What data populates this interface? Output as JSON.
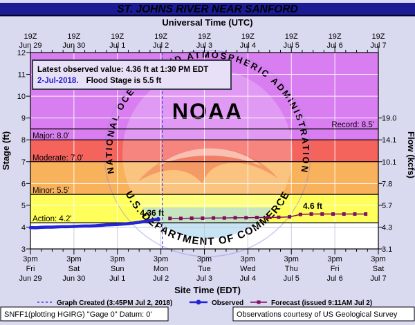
{
  "title": "ST. JOHNS RIVER NEAR SANFORD",
  "top_axis": {
    "title": "Universal Time (UTC)",
    "times": [
      "19Z",
      "19Z",
      "19Z",
      "19Z",
      "19Z",
      "19Z",
      "19Z",
      "19Z",
      "19Z"
    ],
    "dates": [
      "Jun 29",
      "Jun 30",
      "Jul 1",
      "Jul 2",
      "Jul 3",
      "Jul 4",
      "Jul 5",
      "Jul 6",
      "Jul 7"
    ]
  },
  "bottom_axis": {
    "title": "Site Time (EDT)",
    "times": [
      "3pm",
      "3pm",
      "3pm",
      "3pm",
      "3pm",
      "3pm",
      "3pm",
      "3pm",
      "3pm"
    ],
    "days": [
      "Fri",
      "Sat",
      "Sun",
      "Mon",
      "Tue",
      "Wed",
      "Thu",
      "Fri",
      "Sat"
    ],
    "dates": [
      "Jun 29",
      "Jun 30",
      "Jul 1",
      "Jul 2",
      "Jul 3",
      "Jul 4",
      "Jul 5",
      "Jul 6",
      "Jul 7"
    ]
  },
  "left_axis": {
    "label": "Stage (ft)",
    "ticks": [
      "12",
      "11",
      "10",
      "9",
      "8",
      "7",
      "6",
      "5",
      "4",
      "3"
    ]
  },
  "right_axis": {
    "label": "Flow (kcfs)",
    "ticks": [
      "19.0",
      "14.1",
      "10.1",
      "7.8",
      "5.7",
      "4.3",
      "3.1"
    ]
  },
  "info_box": {
    "line1": "Latest observed value: 4.36 ft at 1:30 PM EDT",
    "line2_blue": "2-Jul-2018.",
    "line2_black": "Flood Stage is 5.5 ft"
  },
  "flood_labels": {
    "record": "Record: 8.5'",
    "major": "Major: 8.0'",
    "moderate": "Moderate: 7.0'",
    "minor": "Minor: 5.5'",
    "action": "Action: 4.2'"
  },
  "annotations": {
    "observed_value": "4.36 ft",
    "forecast_peak": "4.6 ft"
  },
  "legend": {
    "graph_created": "Graph Created (3:45PM Jul 2, 2018)",
    "observed": "Observed",
    "forecast": "Forecast (issued 9:11AM Jul 2)"
  },
  "footer": {
    "left": "SNFF1(plotting HGIRG) \"Gage 0\" Datum: 0'",
    "right": "Observations courtesy of US Geological Survey"
  },
  "watermark": {
    "org": "NATIONAL OCEANIC AND ATMOSPHERIC ADMINISTRATION",
    "name": "NOAA",
    "dept": "U.S. DEPARTMENT OF COMMERCE"
  },
  "colors": {
    "title_bar": "#1b1b96",
    "background": "#d9d9f0",
    "zone_major": "#d97ef0",
    "zone_moderate": "#f4635c",
    "zone_minor": "#f9b25c",
    "zone_action": "#ffff5c",
    "zone_normal": "#ffffff",
    "observed": "#2424d8",
    "forecast": "#7d1060",
    "graph_created_line": "#4444e0",
    "blue_text": "#2222cc",
    "info_box_fill": "#e7e0f7"
  },
  "chart_data": {
    "type": "line",
    "title": "ST. JOHNS RIVER NEAR SANFORD",
    "xlabel_top": "Universal Time (UTC)",
    "xlabel_bottom": "Site Time (EDT)",
    "ylabel_left": "Stage (ft)",
    "ylabel_right": "Flow (kcfs)",
    "ylim_stage_ft": [
      3,
      12
    ],
    "x_range_hours": [
      0,
      192
    ],
    "x_start": "Jun 29 3pm EDT (19Z)",
    "x_major_tick_hours": 24,
    "x_minor_tick_hours": 6,
    "flow_ticks_kcfs_at_stage": [
      {
        "stage": 9,
        "flow": 19.0
      },
      {
        "stage": 8,
        "flow": 14.1
      },
      {
        "stage": 7,
        "flow": 10.1
      },
      {
        "stage": 6,
        "flow": 7.8
      },
      {
        "stage": 5,
        "flow": 5.7
      },
      {
        "stage": 4,
        "flow": 4.3
      },
      {
        "stage": 3,
        "flow": 3.1
      }
    ],
    "flood_stages": {
      "action": 4.2,
      "minor": 5.5,
      "moderate": 7.0,
      "major": 8.0,
      "record": 8.5
    },
    "flood_stage_ft": 5.5,
    "latest_observed": {
      "value_ft": 4.36,
      "time": "1:30 PM EDT 2-Jul-2018"
    },
    "graph_created_hours": 72.75,
    "graph_created_time": "3:45PM Jul 2, 2018",
    "forecast_issued_time": "9:11AM Jul 2",
    "series": [
      {
        "name": "Observed",
        "color": "#2424d8",
        "points": [
          [
            0,
            3.98
          ],
          [
            3,
            3.97
          ],
          [
            6,
            3.99
          ],
          [
            9,
            4.0
          ],
          [
            12,
            4.0
          ],
          [
            15,
            4.01
          ],
          [
            18,
            4.02
          ],
          [
            21,
            4.02
          ],
          [
            24,
            4.03
          ],
          [
            27,
            4.04
          ],
          [
            30,
            4.05
          ],
          [
            33,
            4.05
          ],
          [
            36,
            4.06
          ],
          [
            39,
            4.08
          ],
          [
            42,
            4.1
          ],
          [
            45,
            4.11
          ],
          [
            48,
            4.12
          ],
          [
            51,
            4.14
          ],
          [
            54,
            4.16
          ],
          [
            57,
            4.19
          ],
          [
            60,
            4.22
          ],
          [
            63,
            4.26
          ],
          [
            66,
            4.3
          ],
          [
            68,
            4.33
          ],
          [
            70.5,
            4.36
          ]
        ]
      },
      {
        "name": "Forecast",
        "color": "#7d1060",
        "points": [
          [
            77,
            4.4
          ],
          [
            83,
            4.4
          ],
          [
            89,
            4.41
          ],
          [
            95,
            4.41
          ],
          [
            101,
            4.42
          ],
          [
            107,
            4.42
          ],
          [
            113,
            4.43
          ],
          [
            119,
            4.43
          ],
          [
            125,
            4.44
          ],
          [
            131,
            4.44
          ],
          [
            137,
            4.45
          ],
          [
            143,
            4.47
          ],
          [
            149,
            4.58
          ],
          [
            155,
            4.6
          ],
          [
            161,
            4.6
          ],
          [
            167,
            4.6
          ],
          [
            173,
            4.6
          ],
          [
            179,
            4.6
          ],
          [
            185,
            4.6
          ]
        ]
      }
    ],
    "legend_position": "bottom",
    "grid": true
  }
}
